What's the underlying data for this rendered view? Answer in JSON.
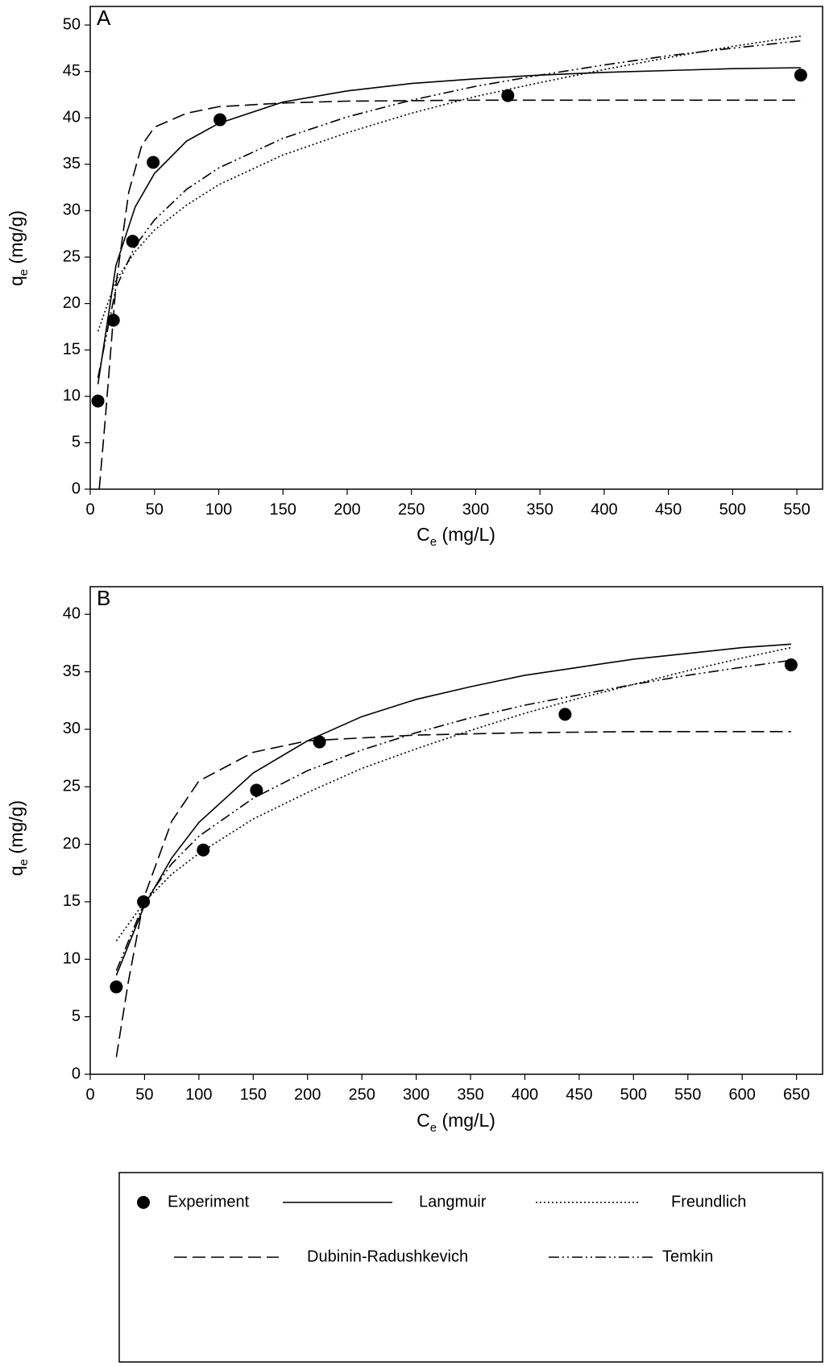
{
  "chart_data": [
    {
      "type": "scatter",
      "panel": "A",
      "xlabel": [
        "C",
        "e",
        " (mg/L)"
      ],
      "ylabel": [
        "q",
        "e",
        " (mg/g)"
      ],
      "xlim": [
        0,
        570
      ],
      "ylim": [
        0,
        52
      ],
      "xticks": [
        0,
        50,
        100,
        150,
        200,
        250,
        300,
        350,
        400,
        450,
        500,
        550
      ],
      "yticks": [
        0,
        5,
        10,
        15,
        20,
        25,
        30,
        35,
        40,
        45,
        50
      ],
      "series": [
        {
          "name": "Experiment",
          "style": "marker",
          "color": "#000000",
          "x": [
            6,
            18,
            33,
            49,
            101,
            325,
            553
          ],
          "values": [
            9.5,
            18.2,
            26.7,
            35.2,
            39.8,
            42.4,
            44.6
          ]
        },
        {
          "name": "Langmuir",
          "style": "solid",
          "color": "#000000",
          "x": [
            6,
            20,
            35,
            50,
            75,
            100,
            150,
            200,
            250,
            300,
            350,
            400,
            450,
            500,
            553
          ],
          "values": [
            11.3,
            24.1,
            30.4,
            34.0,
            37.5,
            39.4,
            41.7,
            42.9,
            43.7,
            44.2,
            44.6,
            44.9,
            45.1,
            45.3,
            45.4
          ]
        },
        {
          "name": "Freundlich",
          "style": "dotted",
          "color": "#000000",
          "x": [
            6,
            20,
            35,
            50,
            75,
            100,
            150,
            200,
            250,
            300,
            350,
            400,
            450,
            500,
            553
          ],
          "values": [
            17.0,
            22.5,
            25.6,
            27.9,
            30.6,
            32.8,
            36.0,
            38.4,
            40.5,
            42.3,
            43.8,
            45.2,
            46.5,
            47.7,
            48.8
          ]
        },
        {
          "name": "Dubinin-Radushkevich",
          "style": "dashed",
          "color": "#000000",
          "x": [
            7,
            12,
            20,
            30,
            40,
            50,
            75,
            100,
            150,
            200,
            300,
            400,
            553
          ],
          "values": [
            0,
            8,
            22,
            32,
            37,
            39,
            40.5,
            41.2,
            41.6,
            41.8,
            41.9,
            41.9,
            41.9
          ]
        },
        {
          "name": "Temkin",
          "style": "dashdotdot",
          "color": "#000000",
          "x": [
            6,
            20,
            35,
            50,
            75,
            100,
            150,
            200,
            250,
            300,
            350,
            400,
            450,
            500,
            553
          ],
          "values": [
            12.0,
            21.7,
            26.2,
            29.0,
            32.3,
            34.6,
            37.8,
            40.1,
            41.9,
            43.4,
            44.6,
            45.7,
            46.7,
            47.5,
            48.3
          ]
        }
      ]
    },
    {
      "type": "scatter",
      "panel": "B",
      "xlim": [
        0,
        674
      ],
      "ylim": [
        0,
        42.4
      ],
      "xticks": [
        0,
        50,
        100,
        150,
        200,
        250,
        300,
        350,
        400,
        450,
        500,
        550,
        600,
        650
      ],
      "yticks": [
        0,
        5,
        10,
        15,
        20,
        25,
        30,
        35,
        40
      ],
      "series": [
        {
          "style": "marker",
          "color": "#000000",
          "x": [
            24,
            49,
            104,
            153,
            211,
            437,
            645
          ],
          "values": [
            7.6,
            15.0,
            19.5,
            24.7,
            28.9,
            31.3,
            35.6
          ]
        },
        {
          "style": "solid",
          "color": "#000000",
          "x": [
            24,
            50,
            75,
            100,
            150,
            200,
            250,
            300,
            350,
            400,
            450,
            500,
            550,
            600,
            645
          ],
          "values": [
            8.6,
            14.7,
            18.8,
            21.9,
            26.2,
            29.0,
            31.1,
            32.6,
            33.7,
            34.7,
            35.4,
            36.1,
            36.6,
            37.1,
            37.4
          ]
        },
        {
          "style": "dotted",
          "color": "#000000",
          "x": [
            24,
            50,
            75,
            100,
            150,
            200,
            250,
            300,
            350,
            400,
            450,
            500,
            550,
            600,
            645
          ],
          "values": [
            11.6,
            15.0,
            17.4,
            19.2,
            22.2,
            24.5,
            26.6,
            28.3,
            29.9,
            31.4,
            32.7,
            33.9,
            35.1,
            36.2,
            37.1
          ]
        },
        {
          "style": "dashed",
          "color": "#000000",
          "x": [
            24,
            35,
            50,
            75,
            100,
            150,
            200,
            300,
            400,
            500,
            645
          ],
          "values": [
            1.5,
            8,
            15.5,
            22,
            25.5,
            28,
            29,
            29.5,
            29.7,
            29.8,
            29.8
          ]
        },
        {
          "style": "dashdotdot",
          "color": "#000000",
          "x": [
            24,
            50,
            75,
            100,
            150,
            200,
            250,
            300,
            350,
            400,
            450,
            500,
            550,
            600,
            645
          ],
          "values": [
            9.0,
            15.0,
            18.3,
            20.7,
            24.0,
            26.4,
            28.2,
            29.7,
            31.0,
            32.1,
            33.0,
            33.9,
            34.7,
            35.4,
            36.0
          ]
        }
      ]
    }
  ]
}
